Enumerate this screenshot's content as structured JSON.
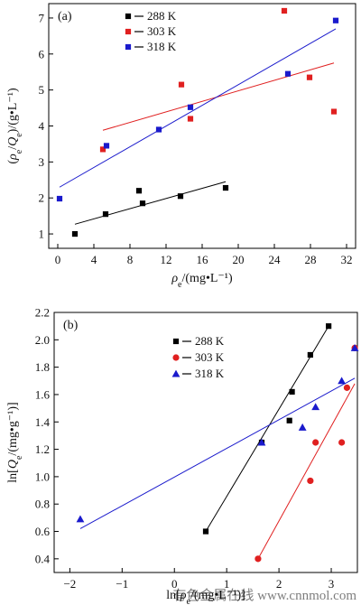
{
  "chart_data": [
    {
      "type": "scatter",
      "panel_label": "(a)",
      "xlabel": "ρe/(mg•L⁻¹)",
      "ylabel": "(ρe/Qe)/(g•L⁻¹)",
      "xlim": [
        -1,
        33
      ],
      "ylim": [
        0.6,
        7.4
      ],
      "xticks": [
        "0",
        "4",
        "8",
        "12",
        "16",
        "20",
        "24",
        "28",
        "32"
      ],
      "yticks": [
        "1",
        "2",
        "3",
        "4",
        "5",
        "6",
        "7"
      ],
      "legend_position": "top-left",
      "series": [
        {
          "name": "288 K",
          "color": "#000000",
          "marker": "square",
          "points": [
            [
              1.9,
              1.0
            ],
            [
              5.3,
              1.55
            ],
            [
              9.0,
              2.2
            ],
            [
              9.4,
              1.85
            ],
            [
              13.6,
              2.05
            ],
            [
              18.6,
              2.28
            ]
          ],
          "fit_line": [
            [
              1.9,
              1.27
            ],
            [
              18.6,
              2.45
            ]
          ]
        },
        {
          "name": "303 K",
          "color": "#e02020",
          "marker": "square",
          "points": [
            [
              5.0,
              3.35
            ],
            [
              13.7,
              5.15
            ],
            [
              14.7,
              4.2
            ],
            [
              25.1,
              7.2
            ],
            [
              27.9,
              5.35
            ],
            [
              30.6,
              4.4
            ]
          ],
          "fit_line": [
            [
              5.0,
              3.88
            ],
            [
              30.6,
              5.75
            ]
          ]
        },
        {
          "name": "318 K",
          "color": "#1a1acc",
          "marker": "square",
          "points": [
            [
              0.2,
              1.98
            ],
            [
              5.4,
              3.45
            ],
            [
              11.2,
              3.9
            ],
            [
              14.7,
              4.52
            ],
            [
              25.5,
              5.45
            ],
            [
              30.8,
              6.93
            ]
          ],
          "fit_line": [
            [
              0.2,
              2.3
            ],
            [
              30.8,
              6.7
            ]
          ]
        }
      ]
    },
    {
      "type": "scatter",
      "panel_label": "(b)",
      "xlabel": "ln[ρe/(mg•L⁻¹)]",
      "ylabel": "ln[Qe/(mg•g⁻¹)]",
      "xlim": [
        -2.3,
        3.5
      ],
      "ylim": [
        0.3,
        2.2
      ],
      "xticks": [
        "−2",
        "−1",
        "0",
        "1",
        "2",
        "3"
      ],
      "yticks": [
        "0.4",
        "0.6",
        "0.8",
        "1.0",
        "1.2",
        "1.4",
        "1.6",
        "1.8",
        "2.0",
        "2.2"
      ],
      "legend_position": "top-center",
      "series": [
        {
          "name": "288 K",
          "color": "#000000",
          "marker": "square",
          "points": [
            [
              0.6,
              0.6
            ],
            [
              1.67,
              1.25
            ],
            [
              2.2,
              1.41
            ],
            [
              2.25,
              1.62
            ],
            [
              2.6,
              1.89
            ],
            [
              2.95,
              2.1
            ]
          ],
          "fit_line": [
            [
              0.6,
              0.6
            ],
            [
              2.95,
              2.1
            ]
          ]
        },
        {
          "name": "303 K",
          "color": "#e02020",
          "marker": "circle",
          "points": [
            [
              1.6,
              0.4
            ],
            [
              2.6,
              0.97
            ],
            [
              2.7,
              1.25
            ],
            [
              3.2,
              1.25
            ],
            [
              3.3,
              1.65
            ],
            [
              3.45,
              1.94
            ]
          ],
          "fit_line": [
            [
              1.6,
              0.4
            ],
            [
              3.45,
              1.68
            ]
          ]
        },
        {
          "name": "318 K",
          "color": "#1a1acc",
          "marker": "triangle",
          "points": [
            [
              -1.8,
              0.69
            ],
            [
              1.67,
              1.25
            ],
            [
              2.45,
              1.36
            ],
            [
              2.7,
              1.51
            ],
            [
              3.2,
              1.7
            ],
            [
              3.45,
              1.94
            ]
          ],
          "fit_line": [
            [
              -1.8,
              0.62
            ],
            [
              3.45,
              1.72
            ]
          ]
        }
      ]
    }
  ],
  "watermark": "有色金属在线 www.cnnmol.com"
}
